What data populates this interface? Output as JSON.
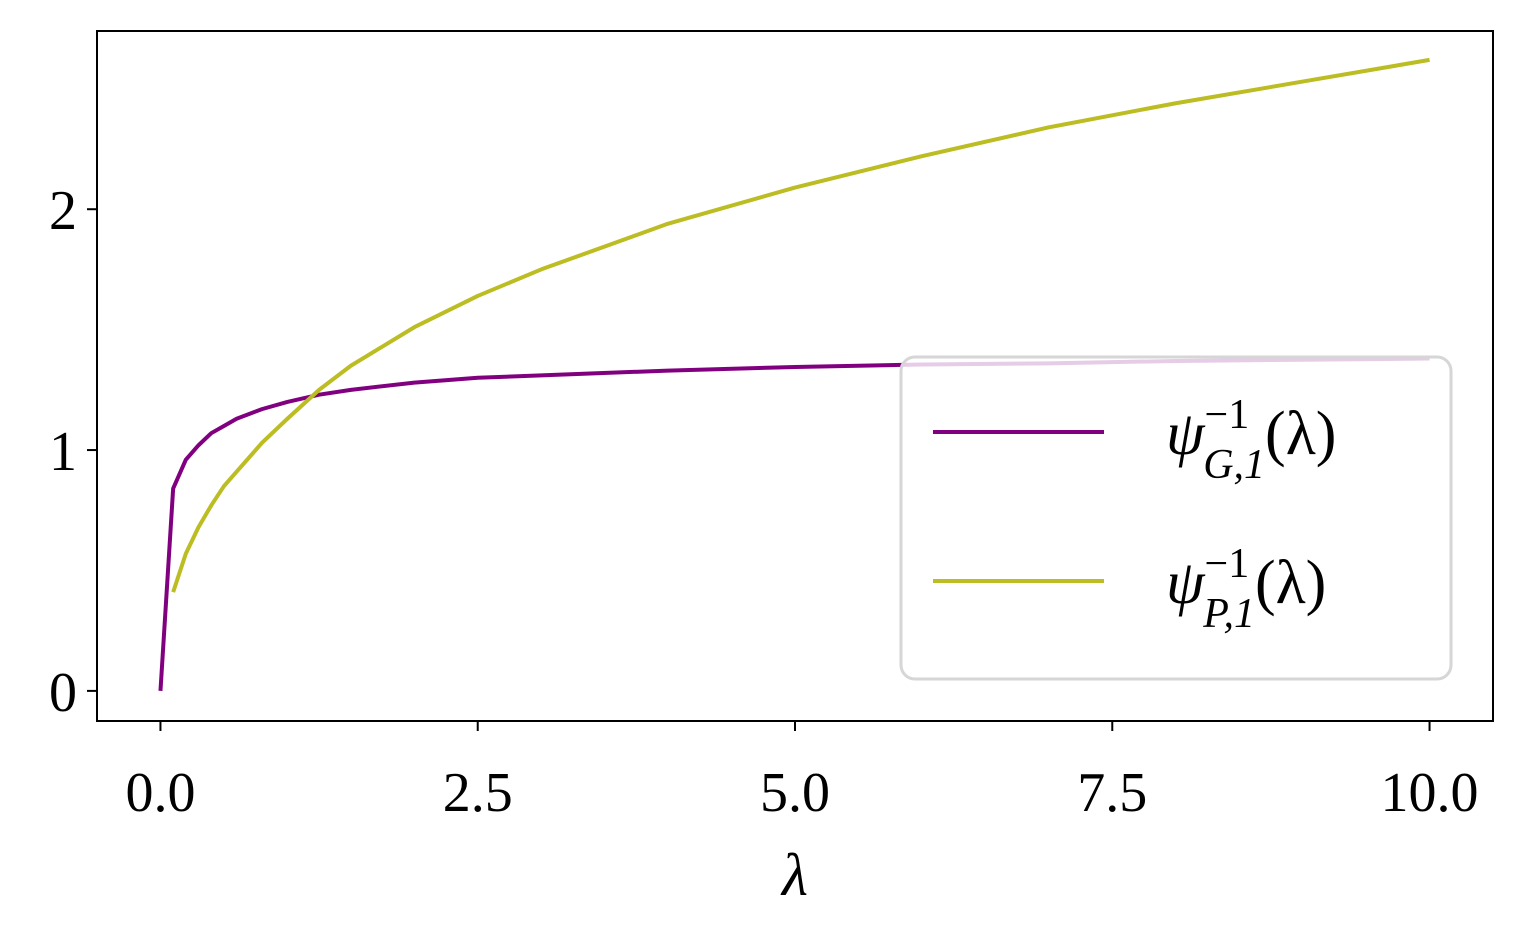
{
  "chart_data": {
    "type": "line",
    "x_label": "λ",
    "x": [
      0,
      0.1,
      0.2,
      0.3,
      0.4,
      0.5,
      0.6,
      0.8,
      1,
      1.25,
      1.5,
      2,
      2.5,
      3,
      4,
      5,
      6,
      7,
      8,
      9,
      10
    ],
    "series": [
      {
        "name": "ψ−1G,1(λ)",
        "color": "#800080",
        "values": [
          0,
          0.84,
          0.96,
          1.02,
          1.07,
          1.1,
          1.13,
          1.17,
          1.2,
          1.23,
          1.25,
          1.28,
          1.3,
          1.31,
          1.33,
          1.345,
          1.355,
          1.36,
          1.37,
          1.375,
          1.38
        ]
      },
      {
        "name": "ψ−1P,1(λ)",
        "color": "#bcbd22",
        "values": [
          null,
          0.41,
          0.57,
          0.68,
          0.77,
          0.85,
          0.91,
          1.03,
          1.13,
          1.25,
          1.35,
          1.51,
          1.64,
          1.75,
          1.94,
          2.09,
          2.22,
          2.34,
          2.44,
          2.53,
          2.62
        ]
      }
    ],
    "xlim": [
      -0.5,
      10.5
    ],
    "xticks": [
      {
        "value": 0,
        "label": "0.0"
      },
      2.5,
      {
        "value": 5,
        "label": "5.0"
      },
      7.5,
      {
        "value": 10,
        "label": "10.0"
      }
    ],
    "ylim": [
      -0.125,
      2.74
    ],
    "yticks": [
      0,
      1,
      2
    ],
    "legend": "lower right"
  }
}
